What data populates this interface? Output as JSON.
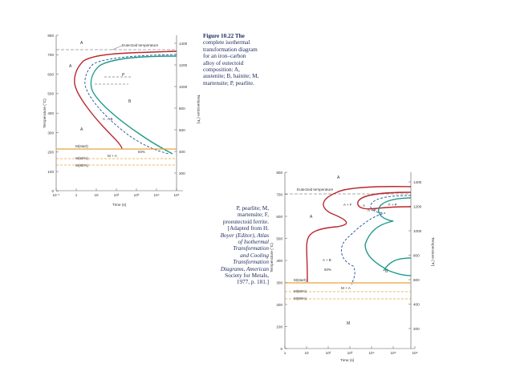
{
  "figure_1": {
    "caption": [
      {
        "text": "Figure 10.22  The",
        "style": "fig"
      },
      {
        "text": "complete isothermal",
        "style": ""
      },
      {
        "text": "transformation diagram",
        "style": ""
      },
      {
        "text": "for an iron–carbon",
        "style": ""
      },
      {
        "text": "alloy of eutectoid",
        "style": ""
      },
      {
        "text": "composition: A,",
        "style": ""
      },
      {
        "text": "austenite; B, bainite; M,",
        "style": ""
      },
      {
        "text": "martensite; P, pearlite.",
        "style": ""
      }
    ],
    "y_left_label": "Temperature (°C)",
    "y_right_label": "Temperature (°F)",
    "x_label": "Time (s)",
    "y_left_ticks": [
      "800",
      "700",
      "600",
      "500",
      "400",
      "300",
      "200",
      "100",
      "0"
    ],
    "y_right_ticks": [
      "1400",
      "1200",
      "1000",
      "800",
      "600",
      "400",
      "200"
    ],
    "x_ticks": [
      "10⁻¹",
      "1",
      "10",
      "10²",
      "10³",
      "10⁴",
      "10⁵"
    ],
    "labels": {
      "eutectoid": "Eutectoid temperature",
      "a_top": "A",
      "a_left": "A",
      "a_lower": "A",
      "p": "P",
      "b": "B",
      "a_to_p": "A → P",
      "a_to_b": "A → B",
      "pct50": "50%",
      "m_start": "M(start)",
      "m_50": "M(50%)",
      "m_90": "M(90%)",
      "m_plus_a": "M + A"
    },
    "colors": {
      "start": "#b8282e",
      "finish": "#1e9a8a",
      "mid": "#1f4f9a",
      "martensite": "#e7a23a"
    }
  },
  "figure_2": {
    "caption": [
      {
        "text": "P, pearlite; M,",
        "style": ""
      },
      {
        "text": "martensite; F,",
        "style": ""
      },
      {
        "text": "proeutectoid ferrite.",
        "style": ""
      },
      {
        "text": "[Adapted from H.",
        "style": ""
      },
      {
        "text": "Boyer (Editor), Atlas",
        "style": "it"
      },
      {
        "text": "of Isothermal",
        "style": "it"
      },
      {
        "text": "Transformation",
        "style": "it"
      },
      {
        "text": "and Cooling",
        "style": "it"
      },
      {
        "text": "Transformation",
        "style": "it"
      },
      {
        "text": "Diagrams, American",
        "style": "it"
      },
      {
        "text": "Society for Metals,",
        "style": ""
      },
      {
        "text": "1977, p. 181.]",
        "style": ""
      }
    ],
    "y_left_label": "Temperature (°C)",
    "y_right_label": "Temperature (°F)",
    "x_label": "Time (s)",
    "y_left_ticks": [
      "800",
      "700",
      "600",
      "500",
      "400",
      "300",
      "200",
      "100",
      "0"
    ],
    "y_right_ticks": [
      "1400",
      "1200",
      "1000",
      "800",
      "600",
      "400",
      "200"
    ],
    "x_ticks": [
      "1",
      "10",
      "10²",
      "10³",
      "10⁴",
      "10⁵",
      "10⁶"
    ],
    "labels": {
      "eutectoid": "Eutectoid temperature",
      "a_top": "A",
      "a_left": "A",
      "a_plus_f": "A + F",
      "a_plus_f_2": "A",
      "a_plus_p": "A + P",
      "f_plus_p": "F + P",
      "a_plus_b": "A + B",
      "pct50": "50%",
      "b": "B",
      "m_start": "M(start)",
      "m_50": "M(50%)",
      "m_90": "M(90%)",
      "m_plus_a": "M + A",
      "m": "M"
    },
    "colors": {
      "start": "#b8282e",
      "finish": "#1e9a8a",
      "mid": "#1f4f9a",
      "martensite": "#e7a23a"
    }
  }
}
